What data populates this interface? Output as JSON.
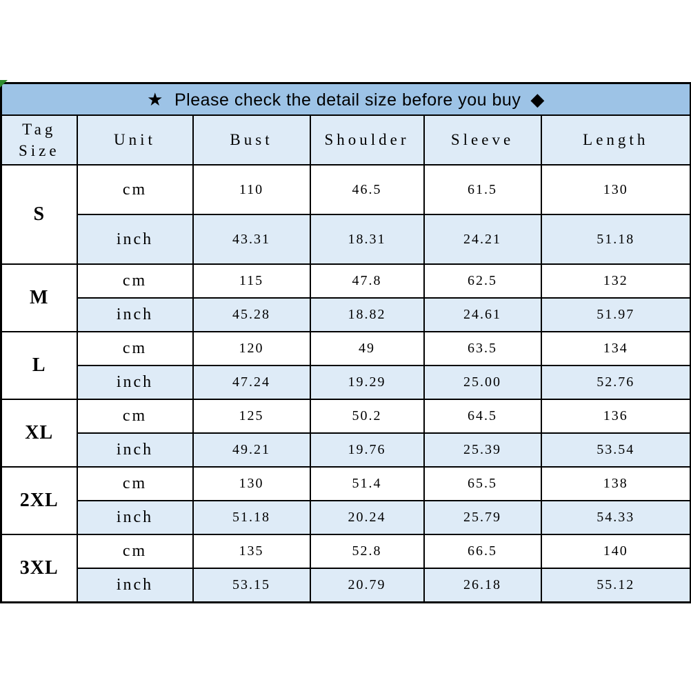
{
  "banner": {
    "star_icon": "★",
    "diamond_icon": "◆",
    "text": "Please check the detail size before you buy"
  },
  "table": {
    "header": {
      "tag_size_line1": "Tag",
      "tag_size_line2": "Size",
      "columns": [
        "Unit",
        "Bust",
        "Shoulder",
        "Sleeve",
        "Length"
      ]
    },
    "unit_labels": [
      "cm",
      "inch"
    ],
    "sizes": [
      {
        "label": "S",
        "cm": [
          "110",
          "46.5",
          "61.5",
          "130"
        ],
        "inch": [
          "43.31",
          "18.31",
          "24.21",
          "51.18"
        ]
      },
      {
        "label": "M",
        "cm": [
          "115",
          "47.8",
          "62.5",
          "132"
        ],
        "inch": [
          "45.28",
          "18.82",
          "24.61",
          "51.97"
        ]
      },
      {
        "label": "L",
        "cm": [
          "120",
          "49",
          "63.5",
          "134"
        ],
        "inch": [
          "47.24",
          "19.29",
          "25.00",
          "52.76"
        ]
      },
      {
        "label": "XL",
        "cm": [
          "125",
          "50.2",
          "64.5",
          "136"
        ],
        "inch": [
          "49.21",
          "19.76",
          "25.39",
          "53.54"
        ]
      },
      {
        "label": "2XL",
        "cm": [
          "130",
          "51.4",
          "65.5",
          "138"
        ],
        "inch": [
          "51.18",
          "20.24",
          "25.79",
          "54.33"
        ]
      },
      {
        "label": "3XL",
        "cm": [
          "135",
          "52.8",
          "66.5",
          "140"
        ],
        "inch": [
          "53.15",
          "20.79",
          "26.18",
          "55.12"
        ]
      }
    ]
  },
  "colors": {
    "banner_bg": "#9dc3e6",
    "light_cell_bg": "#deebf7",
    "border": "#000000",
    "corner_marker_green": "#2e8b2e"
  }
}
